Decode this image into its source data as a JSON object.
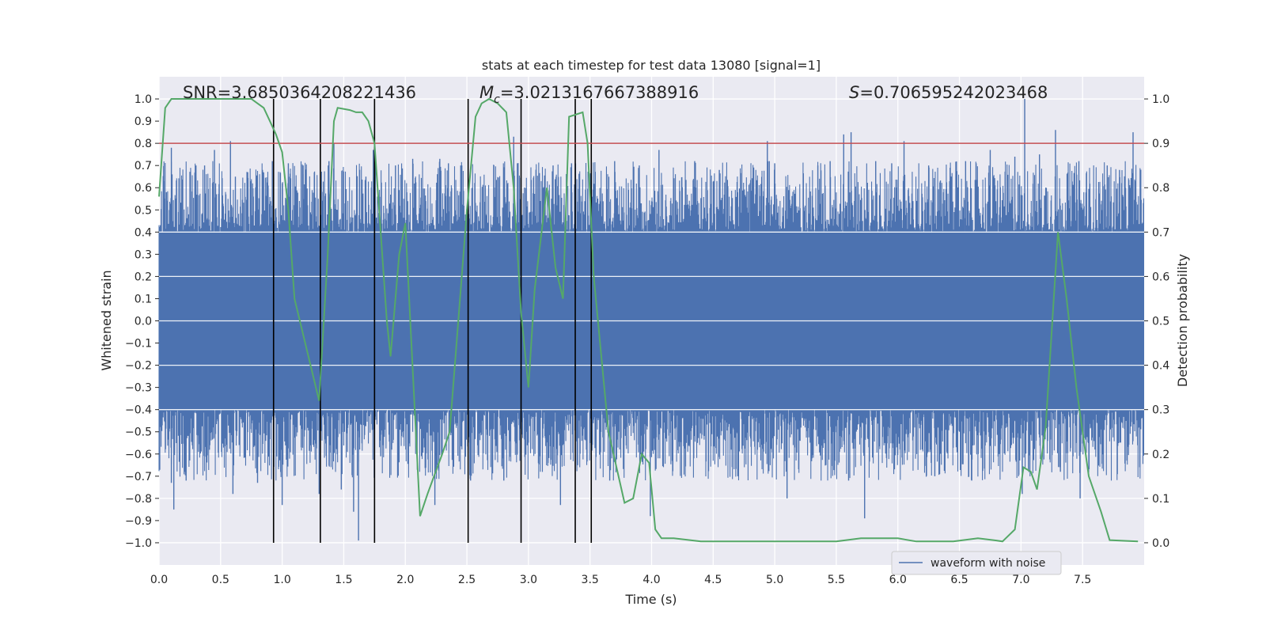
{
  "chart_data": {
    "type": "line",
    "title": "stats at each timestep for test data 13080 [signal=1]",
    "xlabel": "Time (s)",
    "ylabel_left": "Whitened strain",
    "ylabel_right": "Detection probability",
    "xlim": [
      0,
      8
    ],
    "ylim_left": [
      -1.1,
      1.1
    ],
    "ylim_right": [
      -0.05,
      1.05
    ],
    "x_ticks": [
      0.0,
      0.5,
      1.0,
      1.5,
      2.0,
      2.5,
      3.0,
      3.5,
      4.0,
      4.5,
      5.0,
      5.5,
      6.0,
      6.5,
      7.0,
      7.5
    ],
    "x_tick_labels": [
      "0.0",
      "0.5",
      "1.0",
      "1.5",
      "2.0",
      "2.5",
      "3.0",
      "3.5",
      "4.0",
      "4.5",
      "5.0",
      "5.5",
      "6.0",
      "6.5",
      "7.0",
      "7.5"
    ],
    "y_left_ticks": [
      1.0,
      0.9,
      0.8,
      0.7,
      0.6,
      0.5,
      0.4,
      0.3,
      0.2,
      0.1,
      0.0,
      -0.1,
      -0.2,
      -0.3,
      -0.4,
      -0.5,
      -0.6,
      -0.7,
      -0.8,
      -0.9,
      -1.0
    ],
    "y_left_tick_labels": [
      "1.0",
      "0.9",
      "0.8",
      "0.7",
      "0.6",
      "0.5",
      "0.4",
      "0.3",
      "0.2",
      "0.1",
      "0.0",
      "−0.1",
      "−0.2",
      "−0.3",
      "−0.4",
      "−0.5",
      "−0.6",
      "−0.7",
      "−0.8",
      "−0.9",
      "−1.0"
    ],
    "y_right_ticks": [
      1.0,
      0.9,
      0.8,
      0.7,
      0.6,
      0.5,
      0.4,
      0.3,
      0.2,
      0.1,
      0.0
    ],
    "y_right_tick_labels": [
      "1.0",
      "0.9",
      "0.8",
      "0.7",
      "0.6",
      "0.5",
      "0.4",
      "0.3",
      "0.2",
      "0.1",
      "0.0"
    ],
    "grid": true,
    "annotations": {
      "snr": "SNR=3.6850364208221436",
      "mc_symbol": "M",
      "mc_subscript": "c",
      "mc_value": "=3.0213167667388916",
      "s_symbol": "S",
      "s_value": "=0.706595242023468"
    },
    "threshold_line": {
      "y_left": 0.8,
      "color": "#c44e52"
    },
    "vertical_markers_x": [
      0.93,
      1.31,
      1.75,
      2.51,
      2.94,
      3.38,
      3.51
    ],
    "vertical_markers_yrange": [
      -1.0,
      1.0
    ],
    "waveform": {
      "name": "waveform with noise",
      "color": "#4c72b0",
      "samples": 2400,
      "dense_band": 0.4,
      "peaks": [
        {
          "t": 0.04,
          "v": 0.63
        },
        {
          "t": 0.06,
          "v": 0.58
        },
        {
          "t": 0.1,
          "v": 0.78
        },
        {
          "t": 0.12,
          "v": -0.85
        },
        {
          "t": 0.1,
          "v": -0.73
        },
        {
          "t": 0.3,
          "v": 0.7
        },
        {
          "t": 0.22,
          "v": -0.72
        },
        {
          "t": 0.37,
          "v": 0.7
        },
        {
          "t": 0.45,
          "v": 0.77
        },
        {
          "t": 0.58,
          "v": 0.81
        },
        {
          "t": 0.6,
          "v": -0.78
        },
        {
          "t": 0.62,
          "v": 0.65
        },
        {
          "t": 0.72,
          "v": 0.67
        },
        {
          "t": 0.8,
          "v": -0.73
        },
        {
          "t": 0.84,
          "v": 0.68
        },
        {
          "t": 0.92,
          "v": 0.72
        },
        {
          "t": 1.0,
          "v": -0.83
        },
        {
          "t": 1.05,
          "v": 0.71
        },
        {
          "t": 1.17,
          "v": 0.7
        },
        {
          "t": 1.3,
          "v": -0.78
        },
        {
          "t": 1.38,
          "v": 0.72
        },
        {
          "t": 1.42,
          "v": 0.8
        },
        {
          "t": 1.48,
          "v": -0.76
        },
        {
          "t": 1.58,
          "v": -0.86
        },
        {
          "t": 1.62,
          "v": -0.99
        },
        {
          "t": 1.68,
          "v": 0.65
        },
        {
          "t": 1.74,
          "v": 0.77
        },
        {
          "t": 1.8,
          "v": -0.61
        },
        {
          "t": 1.92,
          "v": 0.7
        },
        {
          "t": 2.06,
          "v": 0.73
        },
        {
          "t": 2.24,
          "v": -0.83
        },
        {
          "t": 2.28,
          "v": 0.73
        },
        {
          "t": 2.35,
          "v": 0.71
        },
        {
          "t": 2.45,
          "v": 0.7
        },
        {
          "t": 2.53,
          "v": -0.72
        },
        {
          "t": 2.8,
          "v": -0.72
        },
        {
          "t": 2.88,
          "v": 0.83
        },
        {
          "t": 2.91,
          "v": 0.71
        },
        {
          "t": 3.2,
          "v": 0.7
        },
        {
          "t": 3.26,
          "v": -0.83
        },
        {
          "t": 3.35,
          "v": 0.71
        },
        {
          "t": 3.51,
          "v": -0.7
        },
        {
          "t": 3.66,
          "v": -0.72
        },
        {
          "t": 3.7,
          "v": 0.72
        },
        {
          "t": 3.9,
          "v": 0.7
        },
        {
          "t": 3.99,
          "v": -0.88
        },
        {
          "t": 4.06,
          "v": 0.77
        },
        {
          "t": 4.35,
          "v": 0.72
        },
        {
          "t": 4.55,
          "v": 0.68
        },
        {
          "t": 4.7,
          "v": -0.7
        },
        {
          "t": 4.8,
          "v": 0.62
        },
        {
          "t": 4.94,
          "v": 0.81
        },
        {
          "t": 5.0,
          "v": 0.71
        },
        {
          "t": 5.1,
          "v": -0.8
        },
        {
          "t": 5.35,
          "v": 0.7
        },
        {
          "t": 5.45,
          "v": 0.72
        },
        {
          "t": 5.56,
          "v": 0.84
        },
        {
          "t": 5.6,
          "v": -0.72
        },
        {
          "t": 5.62,
          "v": 0.85
        },
        {
          "t": 5.73,
          "v": -0.89
        },
        {
          "t": 5.82,
          "v": 0.72
        },
        {
          "t": 5.95,
          "v": 0.71
        },
        {
          "t": 6.05,
          "v": 0.81
        },
        {
          "t": 6.25,
          "v": 0.7
        },
        {
          "t": 6.3,
          "v": -0.7
        },
        {
          "t": 6.55,
          "v": 0.72
        },
        {
          "t": 6.6,
          "v": -0.72
        },
        {
          "t": 6.75,
          "v": 0.77
        },
        {
          "t": 6.95,
          "v": 0.74
        },
        {
          "t": 7.03,
          "v": 1.0
        },
        {
          "t": 7.01,
          "v": -0.78
        },
        {
          "t": 7.15,
          "v": 0.75
        },
        {
          "t": 7.28,
          "v": 0.86
        },
        {
          "t": 7.32,
          "v": -0.68
        },
        {
          "t": 7.47,
          "v": 0.72
        },
        {
          "t": 7.48,
          "v": -0.8
        },
        {
          "t": 7.7,
          "v": 0.7
        },
        {
          "t": 7.8,
          "v": 0.68
        },
        {
          "t": 7.91,
          "v": 0.85
        },
        {
          "t": 7.86,
          "v": -0.63
        }
      ]
    },
    "probability_series": {
      "name": "detection probability",
      "color": "#55a868",
      "x": [
        0.0,
        0.05,
        0.1,
        0.2,
        0.5,
        0.75,
        0.8,
        0.85,
        0.9,
        0.95,
        1.0,
        1.05,
        1.1,
        1.3,
        1.37,
        1.42,
        1.45,
        1.55,
        1.6,
        1.65,
        1.7,
        1.75,
        1.85,
        1.88,
        1.95,
        2.0,
        2.12,
        2.18,
        2.22,
        2.3,
        2.36,
        2.5,
        2.57,
        2.62,
        2.68,
        2.75,
        2.82,
        2.88,
        2.94,
        3.0,
        3.05,
        3.15,
        3.22,
        3.28,
        3.33,
        3.44,
        3.48,
        3.53,
        3.65,
        3.78,
        3.85,
        3.92,
        3.98,
        4.03,
        4.08,
        4.12,
        4.18,
        4.4,
        5.0,
        5.5,
        5.7,
        5.9,
        6.0,
        6.15,
        6.45,
        6.65,
        6.8,
        6.85,
        6.95,
        7.02,
        7.08,
        7.13,
        7.2,
        7.3,
        7.37,
        7.45,
        7.55,
        7.65,
        7.72,
        7.95
      ],
      "y": [
        0.78,
        0.98,
        1.0,
        1.0,
        1.0,
        1.0,
        0.99,
        0.98,
        0.95,
        0.92,
        0.88,
        0.75,
        0.55,
        0.32,
        0.65,
        0.95,
        0.98,
        0.975,
        0.97,
        0.97,
        0.95,
        0.9,
        0.5,
        0.42,
        0.65,
        0.72,
        0.06,
        0.11,
        0.14,
        0.2,
        0.25,
        0.75,
        0.96,
        0.99,
        1.0,
        0.99,
        0.97,
        0.8,
        0.52,
        0.35,
        0.57,
        0.8,
        0.62,
        0.55,
        0.96,
        0.97,
        0.9,
        0.6,
        0.25,
        0.09,
        0.1,
        0.2,
        0.18,
        0.03,
        0.01,
        0.01,
        0.01,
        0.003,
        0.003,
        0.003,
        0.01,
        0.01,
        0.01,
        0.003,
        0.003,
        0.01,
        0.005,
        0.003,
        0.03,
        0.17,
        0.16,
        0.12,
        0.26,
        0.7,
        0.55,
        0.35,
        0.15,
        0.07,
        0.006,
        0.003
      ]
    },
    "legend": {
      "placement": "lower-right",
      "entries": [
        "waveform with noise"
      ]
    }
  }
}
